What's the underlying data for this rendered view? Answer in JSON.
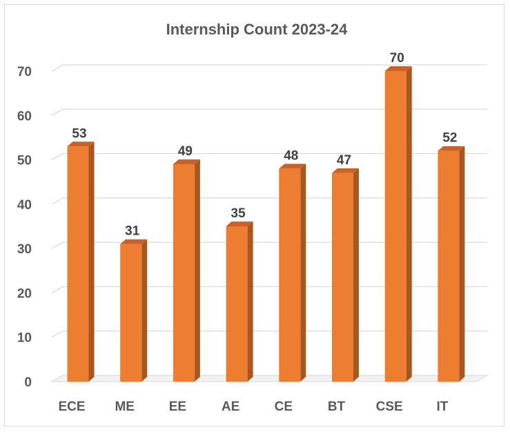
{
  "chart_data": {
    "type": "bar",
    "title": "Internship  Count 2023-24",
    "categories": [
      "ECE",
      "ME",
      "EE",
      "AE",
      "CE",
      "BT",
      "CSE",
      "IT"
    ],
    "values": [
      53,
      31,
      49,
      35,
      48,
      47,
      70,
      52
    ],
    "xlabel": "",
    "ylabel": "",
    "ylim": [
      0,
      70
    ],
    "yticks": [
      0,
      10,
      20,
      30,
      40,
      50,
      60,
      70
    ],
    "grid": true,
    "legend": "none",
    "data_labels": true,
    "style": "3d-column",
    "colors": {
      "bar_front": "#ED7D31",
      "bar_side": "#A9561F",
      "bar_top": "#C7632A",
      "grid": "#d9d9d9"
    }
  }
}
